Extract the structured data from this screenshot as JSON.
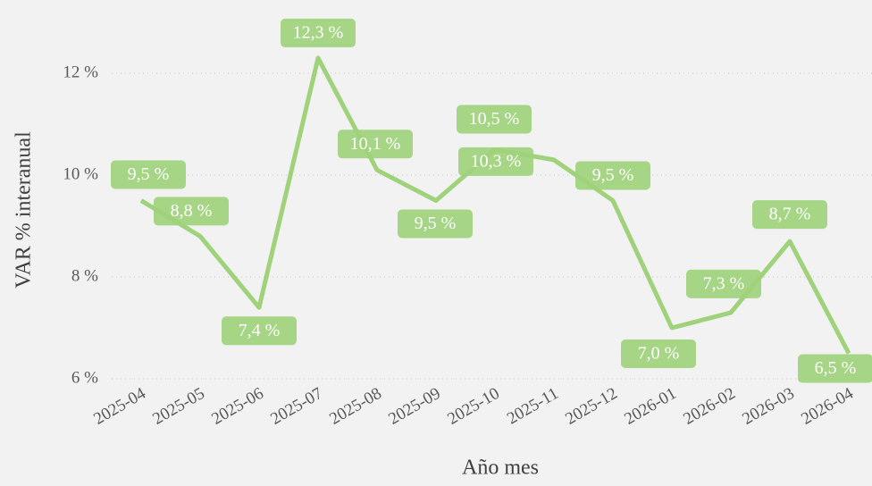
{
  "chart_data": {
    "type": "line",
    "x_label": "Año mes",
    "y_label": "VAR % interanual",
    "categories": [
      "2025-04",
      "2025-05",
      "2025-06",
      "2025-07",
      "2025-08",
      "2025-09",
      "2025-10",
      "2025-11",
      "2025-12",
      "2026-01",
      "2026-02",
      "2026-03",
      "2026-04"
    ],
    "series": [
      {
        "name": "VAR % interanual",
        "color": "#9fd27a",
        "values": [
          9.5,
          8.8,
          7.4,
          12.3,
          10.1,
          9.5,
          10.5,
          10.3,
          9.5,
          7.0,
          7.3,
          8.7,
          6.5
        ],
        "value_labels": [
          "9,5 %",
          "8,8 %",
          "7,4 %",
          "12,3 %",
          "10,1 %",
          "9,5 %",
          "10,5 %",
          "10,3 %",
          "9,5 %",
          "7,0 %",
          "7,3 %",
          "8,7 %",
          "6,5 %"
        ]
      }
    ],
    "ylim": [
      6,
      13.2
    ],
    "yticks": [
      {
        "value": 6,
        "label": "6 %"
      },
      {
        "value": 8,
        "label": "8 %"
      },
      {
        "value": 10,
        "label": "10 %"
      },
      {
        "value": 12,
        "label": "12 %"
      }
    ],
    "grid": true
  }
}
